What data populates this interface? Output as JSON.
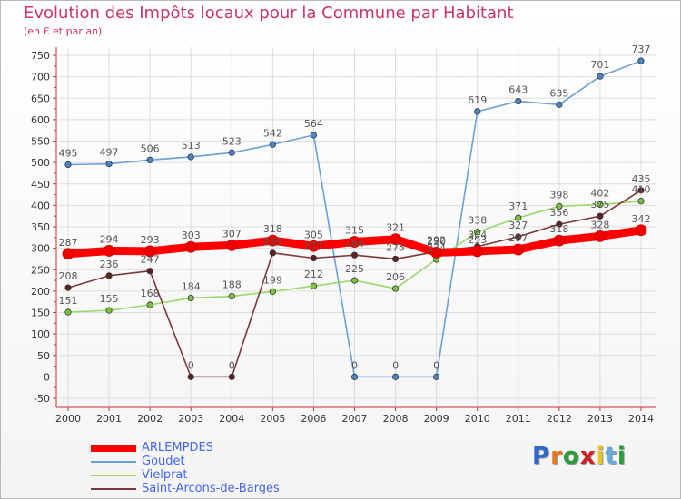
{
  "title": "Evolution des Impôts locaux pour la Commune par Habitant",
  "subtitle": "(en € et par an)",
  "logo": {
    "text": "Proxiti",
    "letter_colors": [
      "#3366cc",
      "#e87722",
      "#2d9b3b",
      "#cc2222",
      "#e8c21e",
      "#66aadd",
      "#2d9b3b"
    ]
  },
  "chart_data": {
    "type": "line",
    "title": "Evolution des Impôts locaux pour la Commune par Habitant",
    "subtitle": "(en € et par an)",
    "x": [
      "2000",
      "2001",
      "2002",
      "2003",
      "2004",
      "2005",
      "2006",
      "2007",
      "2008",
      "2009",
      "2010",
      "2011",
      "2012",
      "2013",
      "2014"
    ],
    "ylim": [
      -50,
      750
    ],
    "yticks": [
      -50,
      0,
      50,
      100,
      150,
      200,
      250,
      300,
      350,
      400,
      450,
      500,
      550,
      600,
      650,
      700,
      750
    ],
    "grid": true,
    "legend_position": "bottom-left",
    "series": [
      {
        "name": "Goudet",
        "color": "#6a9fd8",
        "marker": "#4a86cc",
        "values": [
          495,
          497,
          506,
          513,
          523,
          542,
          564,
          0,
          0,
          0,
          619,
          643,
          635,
          701,
          737
        ]
      },
      {
        "name": "Vielprat",
        "color": "#9ad86a",
        "marker": "#7cc63f",
        "values": [
          151,
          155,
          168,
          184,
          188,
          199,
          212,
          225,
          206,
          274,
          338,
          371,
          398,
          402,
          410
        ]
      },
      {
        "name": "Saint-Arcons-de-Barges",
        "color": "#7a3a3a",
        "marker": "#5e2323",
        "values": [
          208,
          236,
          247,
          0,
          0,
          289,
          277,
          284,
          275,
          292,
          304,
          327,
          356,
          375,
          435
        ]
      },
      {
        "name": "ARLEMPDES",
        "color": "#ff0000",
        "marker": "#ee0000",
        "values": [
          287,
          294,
          293,
          303,
          307,
          318,
          305,
          315,
          321,
          290,
          293,
          297,
          318,
          328,
          342
        ]
      }
    ],
    "legend": [
      "ARLEMPDES",
      "Goudet",
      "Vielprat",
      "Saint-Arcons-de-Barges"
    ]
  }
}
